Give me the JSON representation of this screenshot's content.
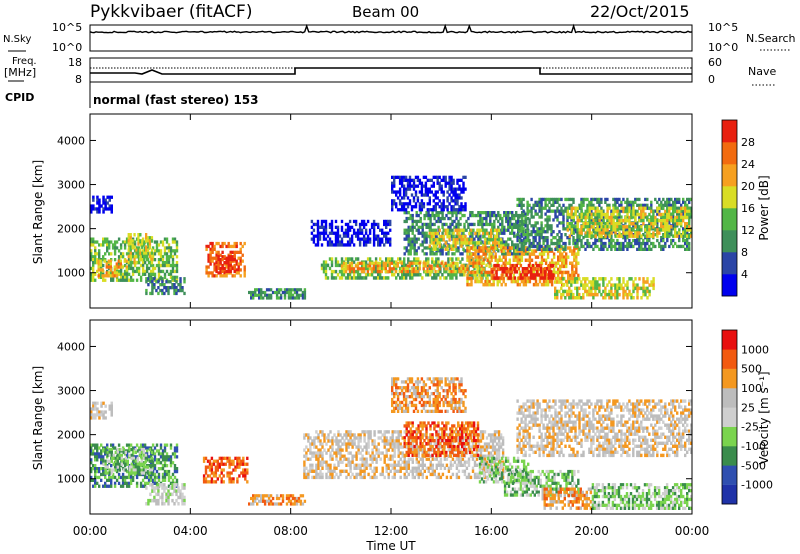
{
  "header": {
    "station": "Pykkvibaer (fitACF)",
    "beam": "Beam 00",
    "date": "22/Oct/2015"
  },
  "noise_panel": {
    "left_label": "N.Sky",
    "left_ticks": [
      "10^5",
      "10^0"
    ],
    "right_label": "N.Search",
    "right_ticks": [
      "10^5",
      "10^0"
    ]
  },
  "freq_panel": {
    "left_label_1": "Freq.",
    "left_label_2": "[MHz]",
    "left_ticks": [
      "18",
      "8"
    ],
    "right_label": "Nave",
    "right_ticks": [
      "60",
      "0"
    ],
    "cpid_label": "CPID",
    "mode": "normal (fast stereo) 153"
  },
  "x_axis": {
    "label": "Time UT",
    "ticks": [
      "00:00",
      "04:00",
      "08:00",
      "12:00",
      "16:00",
      "20:00",
      "00:00"
    ]
  },
  "colors": {
    "power_scale": [
      "#0000ee",
      "#2b45a6",
      "#3e8f5a",
      "#52b646",
      "#d9dd25",
      "#f6a020",
      "#f26b10",
      "#e82010"
    ],
    "velocity_scale": [
      "#e80f0f",
      "#f25a10",
      "#f49820",
      "#bdbdbd",
      "#cfcfcf",
      "#7ad44e",
      "#3a8c4c",
      "#2f4fb0",
      "#1f32a8"
    ]
  },
  "chart_data": [
    {
      "type": "heatmap",
      "name": "power",
      "ylabel": "Slant Range [km]",
      "yticks": [
        "1000",
        "2000",
        "3000",
        "4000"
      ],
      "ylim": [
        200,
        4600
      ],
      "xlim_hours": [
        0,
        24
      ],
      "colorbar_label": "Power [dB]",
      "colorbar_ticks": [
        "4",
        "8",
        "12",
        "16",
        "20",
        "24",
        "28"
      ],
      "colorbar_range": [
        0,
        32
      ],
      "regions": [
        {
          "t0": 0.0,
          "t1": 0.9,
          "r0": 2350,
          "r1": 2750,
          "level": 1
        },
        {
          "t0": 0.0,
          "t1": 3.5,
          "r0": 800,
          "r1": 1800,
          "level": 4
        },
        {
          "t0": 0.3,
          "t1": 1.5,
          "r0": 900,
          "r1": 1300,
          "level": 6
        },
        {
          "t0": 1.5,
          "t1": 2.5,
          "r0": 1200,
          "r1": 1900,
          "level": 5
        },
        {
          "t0": 2.2,
          "t1": 3.8,
          "r0": 500,
          "r1": 900,
          "level": 3
        },
        {
          "t0": 4.6,
          "t1": 6.2,
          "r0": 900,
          "r1": 1700,
          "level": 7
        },
        {
          "t0": 5.0,
          "t1": 5.8,
          "r0": 1000,
          "r1": 1400,
          "level": 8
        },
        {
          "t0": 6.3,
          "t1": 8.6,
          "r0": 400,
          "r1": 650,
          "level": 3
        },
        {
          "t0": 8.8,
          "t1": 12.0,
          "r0": 1600,
          "r1": 2200,
          "level": 1
        },
        {
          "t0": 9.2,
          "t1": 16.0,
          "r0": 850,
          "r1": 1350,
          "level": 4
        },
        {
          "t0": 10.0,
          "t1": 15.0,
          "r0": 1000,
          "r1": 1250,
          "level": 6
        },
        {
          "t0": 12.5,
          "t1": 17.5,
          "r0": 1400,
          "r1": 2400,
          "level": 3
        },
        {
          "t0": 13.5,
          "t1": 16.5,
          "r0": 1500,
          "r1": 2000,
          "level": 5
        },
        {
          "t0": 15.0,
          "t1": 19.5,
          "r0": 700,
          "r1": 1600,
          "level": 6
        },
        {
          "t0": 16.0,
          "t1": 18.5,
          "r0": 850,
          "r1": 1200,
          "level": 8
        },
        {
          "t0": 17.0,
          "t1": 24.0,
          "r0": 1500,
          "r1": 2700,
          "level": 3
        },
        {
          "t0": 18.5,
          "t1": 22.5,
          "r0": 400,
          "r1": 900,
          "level": 5
        },
        {
          "t0": 19.0,
          "t1": 24.0,
          "r0": 1800,
          "r1": 2500,
          "level": 5
        },
        {
          "t0": 12.0,
          "t1": 15.0,
          "r0": 2400,
          "r1": 3200,
          "level": 1
        }
      ]
    },
    {
      "type": "heatmap",
      "name": "velocity",
      "ylabel": "Slant Range [km]",
      "yticks": [
        "1000",
        "2000",
        "3000",
        "4000"
      ],
      "ylim": [
        200,
        4600
      ],
      "xlim_hours": [
        0,
        24
      ],
      "colorbar_label": "Velocity [m s⁻¹]",
      "colorbar_ticks": [
        "1000",
        "500",
        "100",
        "25",
        "-25",
        "-100",
        "-500",
        "-1000"
      ],
      "regions": [
        {
          "t0": 0.0,
          "t1": 0.9,
          "r0": 2350,
          "r1": 2750,
          "level": 4
        },
        {
          "t0": 0.0,
          "t1": 3.5,
          "r0": 800,
          "r1": 1800,
          "level": 7
        },
        {
          "t0": 0.5,
          "t1": 2.5,
          "r0": 1100,
          "r1": 1700,
          "level": 6
        },
        {
          "t0": 2.2,
          "t1": 3.8,
          "r0": 400,
          "r1": 900,
          "level": 5
        },
        {
          "t0": 4.5,
          "t1": 6.3,
          "r0": 900,
          "r1": 1500,
          "level": 2
        },
        {
          "t0": 6.3,
          "t1": 8.6,
          "r0": 400,
          "r1": 650,
          "level": 3
        },
        {
          "t0": 8.5,
          "t1": 16.5,
          "r0": 1000,
          "r1": 2100,
          "level": 4
        },
        {
          "t0": 12.5,
          "t1": 15.5,
          "r0": 1500,
          "r1": 2300,
          "level": 2
        },
        {
          "t0": 15.5,
          "t1": 17.5,
          "r0": 900,
          "r1": 1500,
          "level": 6
        },
        {
          "t0": 16.5,
          "t1": 19.5,
          "r0": 600,
          "r1": 1200,
          "level": 6
        },
        {
          "t0": 17.0,
          "t1": 24.0,
          "r0": 1500,
          "r1": 2800,
          "level": 4
        },
        {
          "t0": 18.0,
          "t1": 20.0,
          "r0": 300,
          "r1": 800,
          "level": 3
        },
        {
          "t0": 20.0,
          "t1": 24.0,
          "r0": 300,
          "r1": 900,
          "level": 6
        },
        {
          "t0": 12.0,
          "t1": 15.0,
          "r0": 2500,
          "r1": 3300,
          "level": 3
        }
      ]
    }
  ]
}
